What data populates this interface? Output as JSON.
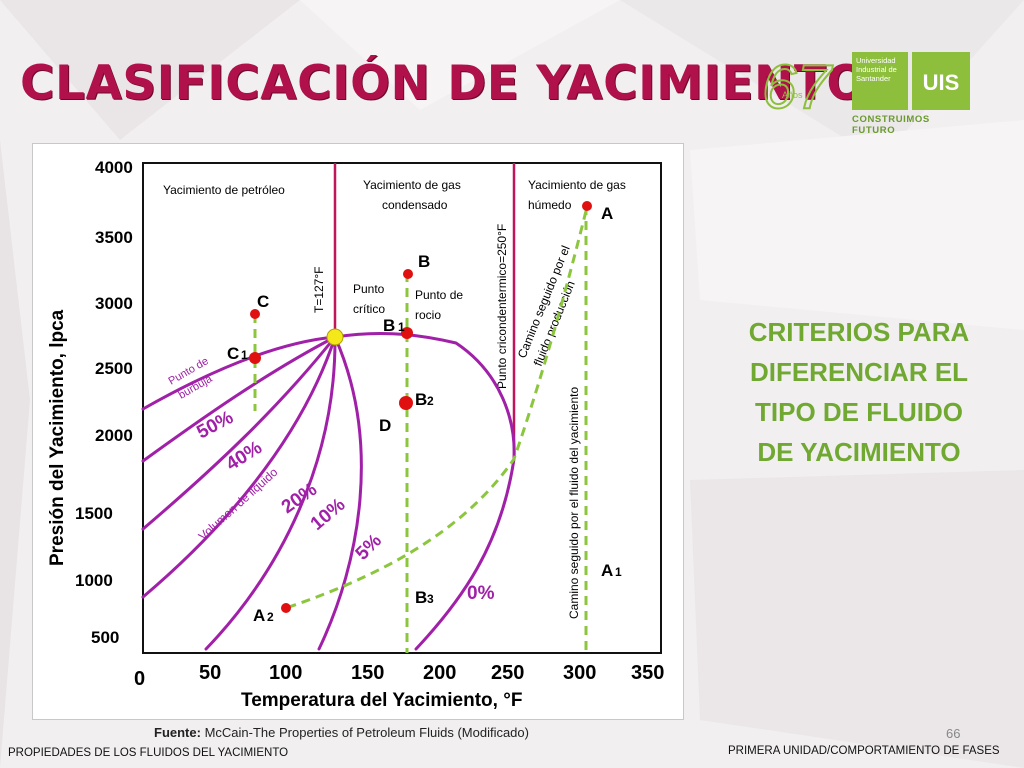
{
  "slide": {
    "title": "CLASIFICACIÓN DE YACIMIENTO",
    "criteria_text": [
      "CRITERIOS PARA",
      "DIFERENCIAR EL",
      "TIPO DE FLUIDO",
      "DE YACIMIENTO"
    ],
    "source_label": "Fuente:",
    "source_text": "McCain-The Properties of Petroleum Fluids (Modificado)",
    "page_number": "66",
    "footer_left": "PROPIEDADES DE LOS FLUIDOS DEL YACIMIENTO",
    "footer_right": "PRIMERA UNIDAD/COMPORTAMIENTO DE FASES"
  },
  "logo": {
    "anniversary_number": "67",
    "anniversary_word": "Años",
    "university_name": [
      "Universidad",
      "Industrial de",
      "Santander"
    ],
    "monogram": "UIS",
    "slogan": "CONSTRUIMOS FUTURO",
    "brand_green": "#8dbf3c",
    "title_color": "#b0114a"
  },
  "diagram": {
    "y_axis_label": "Presión del Yacimiento, lpca",
    "x_axis_label": "Temperatura del Yacimiento, °F",
    "y_ticks": [
      "4000",
      "3500",
      "3000",
      "2500",
      "2000",
      "1500",
      "1000",
      "500"
    ],
    "x_ticks": [
      "0",
      "50",
      "100",
      "150",
      "200",
      "250",
      "300",
      "350"
    ],
    "regions": {
      "oil": "Yacimiento de petróleo",
      "gas_condensate": [
        "Yacimiento de gas",
        "condensado"
      ],
      "wet_gas": [
        "Yacimiento de gas",
        "húmedo"
      ]
    },
    "vertical_lines": {
      "critical_temp": "T=127°F",
      "cricondentherm": "Punto cricondentermico=250°F"
    },
    "points": {
      "A": "A",
      "A1": "A",
      "A1_sub": "1",
      "A2": "A",
      "A2_sub": "2",
      "B": "B",
      "B1": "B",
      "B1_sub": "1",
      "B2": "B",
      "B2_sub": "2",
      "B3": "B",
      "B3_sub": "3",
      "C": "C",
      "C1": "C",
      "C1_sub": "1",
      "D": "D"
    },
    "annotations": {
      "critical_point": [
        "Punto",
        "crítico"
      ],
      "dew_point": [
        "Punto de",
        "rocio"
      ],
      "bubble_point": [
        "Punto de",
        "burbuja"
      ],
      "liquid_volume": "Volumen de liquido",
      "production_path": [
        "Camino seguido por el",
        "fluido producción"
      ],
      "reservoir_path": "Camino seguido por el fluido del yacimiento"
    },
    "quality_lines": [
      "50%",
      "40%",
      "20%",
      "10%",
      "5%",
      "0%"
    ],
    "colors": {
      "envelope": "#a020a8",
      "vertical_line": "#c0155a",
      "path": "#8cc63f",
      "point": "#e01010",
      "critical_point": "#f5e81a"
    }
  }
}
